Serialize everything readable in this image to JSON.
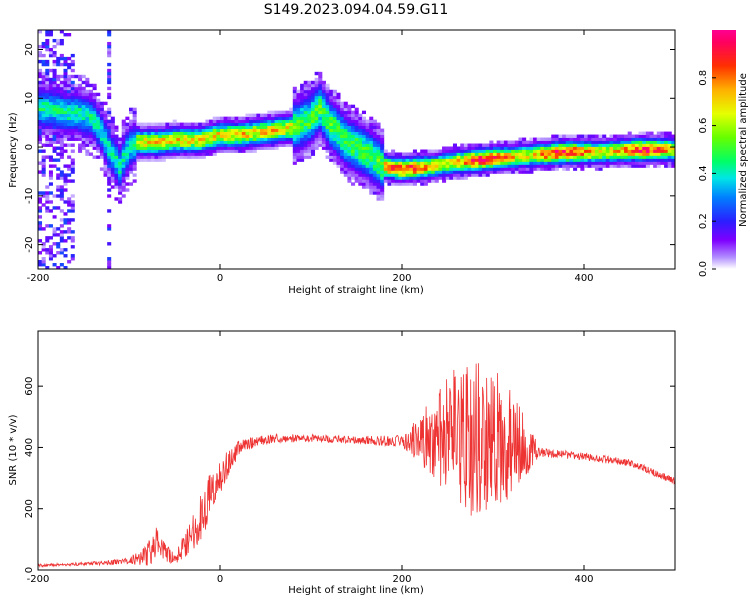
{
  "title": "S149.2023.094.04.59.G11",
  "chart_data": [
    {
      "type": "heatmap",
      "xlabel": "Height of straight line (km)",
      "ylabel": "Frequency (Hz)",
      "xlim": [
        -200,
        500
      ],
      "ylim": [
        -25,
        24
      ],
      "x_ticks": [
        -200,
        0,
        200,
        400
      ],
      "y_ticks": [
        -20,
        -10,
        0,
        10,
        20
      ],
      "ridge": {
        "x": [
          -200,
          -185,
          -170,
          -155,
          -140,
          -130,
          -120,
          -110,
          -100,
          -90,
          -70,
          -50,
          -20,
          0,
          20,
          40,
          60,
          80,
          100,
          110,
          120,
          140,
          160,
          180,
          200,
          230,
          260,
          290,
          320,
          350,
          380,
          420,
          460,
          500
        ],
        "y": [
          8,
          8,
          7,
          7,
          6,
          3,
          -1,
          -4,
          0,
          1,
          1,
          1.5,
          1.5,
          2.5,
          2.5,
          3,
          3.5,
          4,
          6,
          8,
          5,
          1,
          -1,
          -4,
          -4.5,
          -4,
          -3,
          -2.5,
          -2,
          -1.5,
          -1,
          -1,
          -0.5,
          -0.5
        ]
      },
      "colorbar": {
        "label": "Normalized spectral amplitude",
        "range": [
          0,
          1
        ],
        "ticks": [
          "0.0",
          "0.2",
          "0.4",
          "0.6",
          "0.8"
        ]
      }
    },
    {
      "type": "line",
      "xlabel": "Height of straight line (km)",
      "ylabel": "SNR (10 * v/v)",
      "xlim": [
        -200,
        500
      ],
      "ylim": [
        0,
        780
      ],
      "x_ticks": [
        -200,
        0,
        200,
        400
      ],
      "y_ticks": [
        0,
        200,
        400,
        600
      ],
      "series_color": "#ee3333",
      "envelope": {
        "x": [
          -200,
          -150,
          -120,
          -100,
          -80,
          -70,
          -60,
          -50,
          -40,
          -30,
          -20,
          -10,
          0,
          10,
          20,
          40,
          60,
          100,
          150,
          200,
          220,
          240,
          260,
          280,
          300,
          320,
          340,
          350,
          400,
          450,
          500
        ],
        "mean": [
          15,
          20,
          25,
          30,
          50,
          80,
          60,
          30,
          80,
          120,
          180,
          250,
          300,
          350,
          400,
          420,
          430,
          430,
          425,
          420,
          430,
          430,
          430,
          430,
          420,
          410,
          400,
          385,
          370,
          350,
          290
        ],
        "amplitude": [
          5,
          5,
          8,
          10,
          40,
          60,
          30,
          20,
          40,
          60,
          80,
          80,
          60,
          50,
          25,
          15,
          15,
          12,
          12,
          20,
          80,
          160,
          240,
          260,
          250,
          180,
          80,
          15,
          12,
          12,
          12
        ]
      }
    }
  ]
}
